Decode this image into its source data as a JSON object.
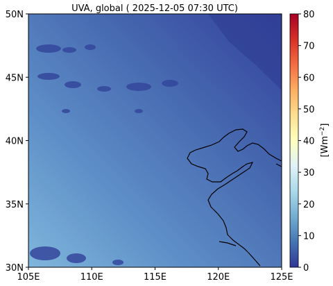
{
  "title": "UVA, global ( 2025-12-05 07:30 UTC)",
  "map": {
    "lon_range": [
      105,
      125
    ],
    "lat_range": [
      30,
      50
    ],
    "x_ticks": [
      {
        "value": 105,
        "label": "105E"
      },
      {
        "value": 110,
        "label": "110E"
      },
      {
        "value": 115,
        "label": "115E"
      },
      {
        "value": 120,
        "label": "120E"
      },
      {
        "value": 125,
        "label": "125E"
      }
    ],
    "y_ticks": [
      {
        "value": 30,
        "label": "30N"
      },
      {
        "value": 35,
        "label": "35N"
      },
      {
        "value": 40,
        "label": "40N"
      },
      {
        "value": 45,
        "label": "45N"
      },
      {
        "value": 50,
        "label": "50N"
      }
    ]
  },
  "colorbar": {
    "label": "[Wm",
    "label_exp": "−2",
    "label_close": "]",
    "range": [
      0,
      80
    ],
    "ticks": [
      {
        "value": 0,
        "label": "0"
      },
      {
        "value": 10,
        "label": "10"
      },
      {
        "value": 20,
        "label": "20"
      },
      {
        "value": 30,
        "label": "30"
      },
      {
        "value": 40,
        "label": "40"
      },
      {
        "value": 50,
        "label": "50"
      },
      {
        "value": 60,
        "label": "60"
      },
      {
        "value": 70,
        "label": "70"
      },
      {
        "value": 80,
        "label": "80"
      }
    ],
    "colors": [
      "#313695",
      "#4575b4",
      "#74add1",
      "#abd9e9",
      "#e0f3f8",
      "#ffffbf",
      "#fee090",
      "#fdae61",
      "#f46d43",
      "#d73027",
      "#a50026"
    ]
  },
  "field_colors": {
    "low": "#3d56a6",
    "mid": "#4f7bbf",
    "high": "#7ab0d8",
    "dark": "#2f3f93"
  }
}
